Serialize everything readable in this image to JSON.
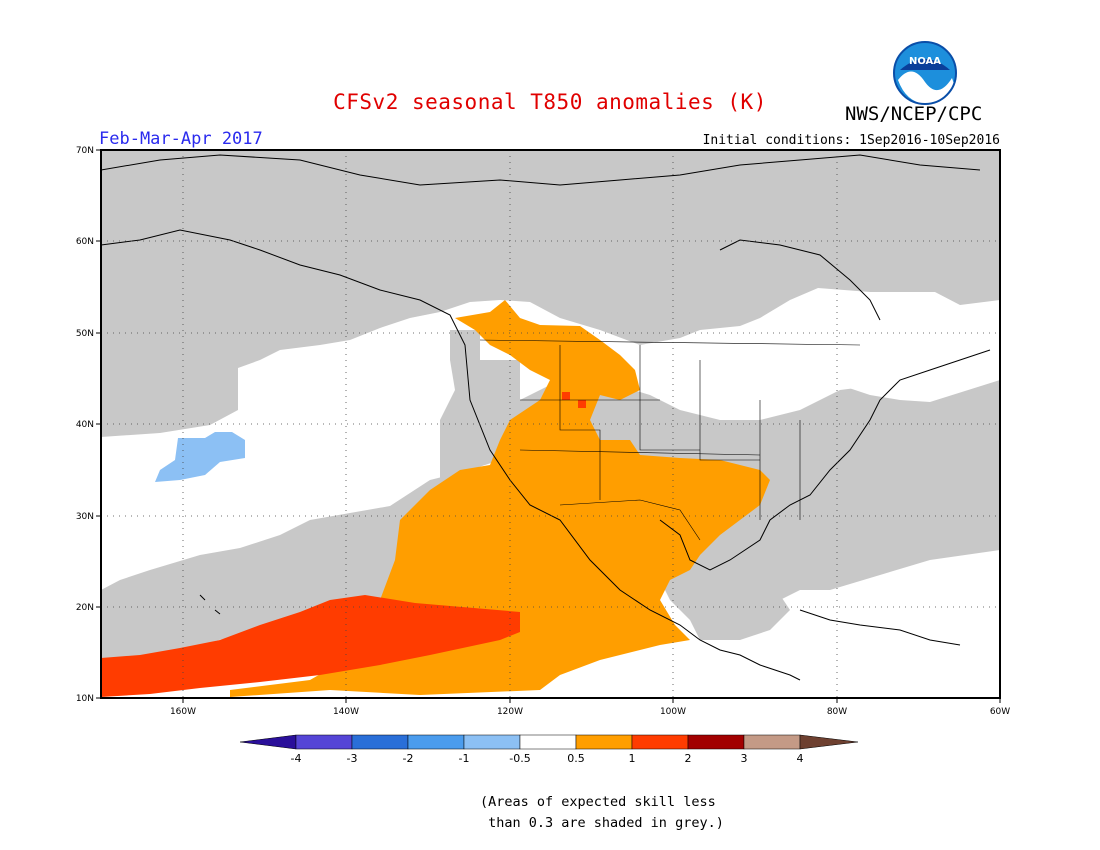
{
  "title": "CFSv2 seasonal T850 anomalies (K)",
  "agency": "NWS/NCEP/CPC",
  "logo_text": "NOAA",
  "season": "Feb-Mar-Apr 2017",
  "initial_conditions": "Initial conditions: 1Sep2016-10Sep2016",
  "note_lines": [
    "(Areas of expected skill less",
    " than 0.3 are shaded in grey.)"
  ],
  "map": {
    "lat_labels": [
      "70N",
      "60N",
      "50N",
      "40N",
      "30N",
      "20N",
      "10N"
    ],
    "lon_labels": [
      "160W",
      "140W",
      "120W",
      "100W",
      "80W",
      "60W"
    ],
    "lat_range": [
      10,
      70
    ],
    "lon_range": [
      -170,
      -60
    ],
    "grid": true
  },
  "colorbar": {
    "tick_labels": [
      "-4",
      "-3",
      "-2",
      "-1",
      "-0.5",
      "0.5",
      "1",
      "2",
      "3",
      "4"
    ],
    "colors": [
      "#2a0f9a",
      "#5545d6",
      "#2a6fd8",
      "#4b9ced",
      "#8cc0f4",
      "#ffffff",
      "#ff9e00",
      "#ff3c00",
      "#a20000",
      "#c49a86",
      "#6e4030"
    ]
  },
  "legend_colors": {
    "low_skill_grey": "#c8c8c8",
    "anom_0_5_to_1": "#ff9e00",
    "anom_1_to_2": "#ff3c00",
    "anom_neg_1_to_neg_0_5": "#8cc0f4"
  }
}
